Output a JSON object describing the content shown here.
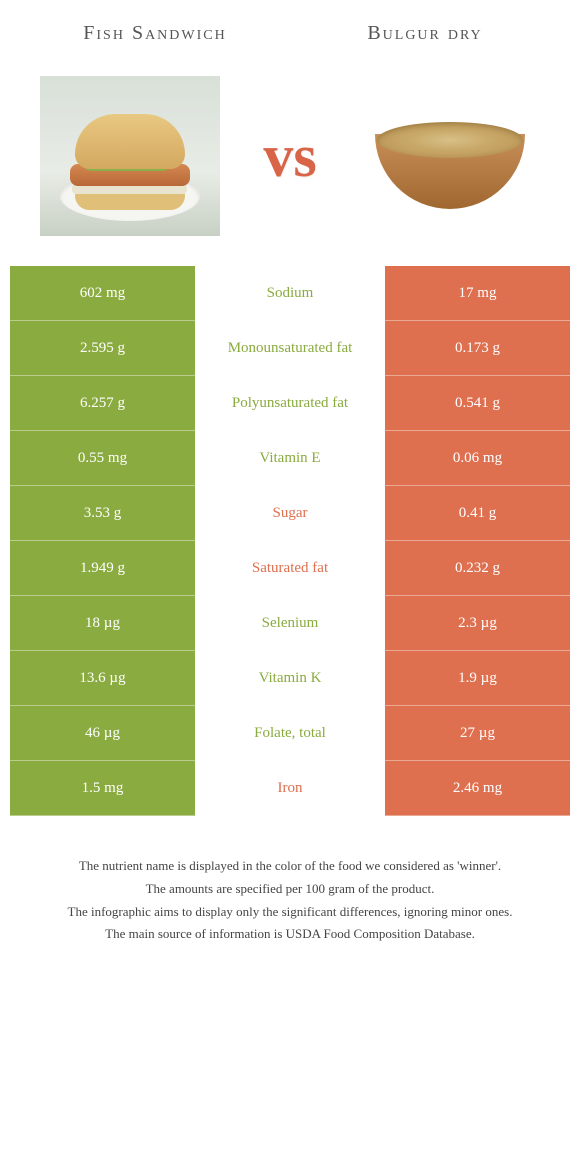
{
  "food_left": {
    "title": "Fish Sandwich"
  },
  "food_right": {
    "title": "Bulgur dry"
  },
  "vs_label": "vs",
  "colors": {
    "left": "#8aab3f",
    "right": "#de6f4f",
    "mid_left_text": "#8aab3f",
    "mid_right_text": "#de6f4f"
  },
  "rows": [
    {
      "left": "602 mg",
      "name": "Sodium",
      "right": "17 mg",
      "winner": "left"
    },
    {
      "left": "2.595 g",
      "name": "Monounsaturated fat",
      "right": "0.173 g",
      "winner": "left"
    },
    {
      "left": "6.257 g",
      "name": "Polyunsaturated fat",
      "right": "0.541 g",
      "winner": "left"
    },
    {
      "left": "0.55 mg",
      "name": "Vitamin E",
      "right": "0.06 mg",
      "winner": "left"
    },
    {
      "left": "3.53 g",
      "name": "Sugar",
      "right": "0.41 g",
      "winner": "right"
    },
    {
      "left": "1.949 g",
      "name": "Saturated fat",
      "right": "0.232 g",
      "winner": "right"
    },
    {
      "left": "18 µg",
      "name": "Selenium",
      "right": "2.3 µg",
      "winner": "left"
    },
    {
      "left": "13.6 µg",
      "name": "Vitamin K",
      "right": "1.9 µg",
      "winner": "left"
    },
    {
      "left": "46 µg",
      "name": "Folate, total",
      "right": "27 µg",
      "winner": "left"
    },
    {
      "left": "1.5 mg",
      "name": "Iron",
      "right": "2.46 mg",
      "winner": "right"
    }
  ],
  "footer": {
    "l1": "The nutrient name is displayed in the color of the food we considered as 'winner'.",
    "l2": "The amounts are specified per 100 gram of the product.",
    "l3": "The infographic aims to display only the significant differences, ignoring minor ones.",
    "l4": "The main source of information is USDA Food Composition Database."
  }
}
